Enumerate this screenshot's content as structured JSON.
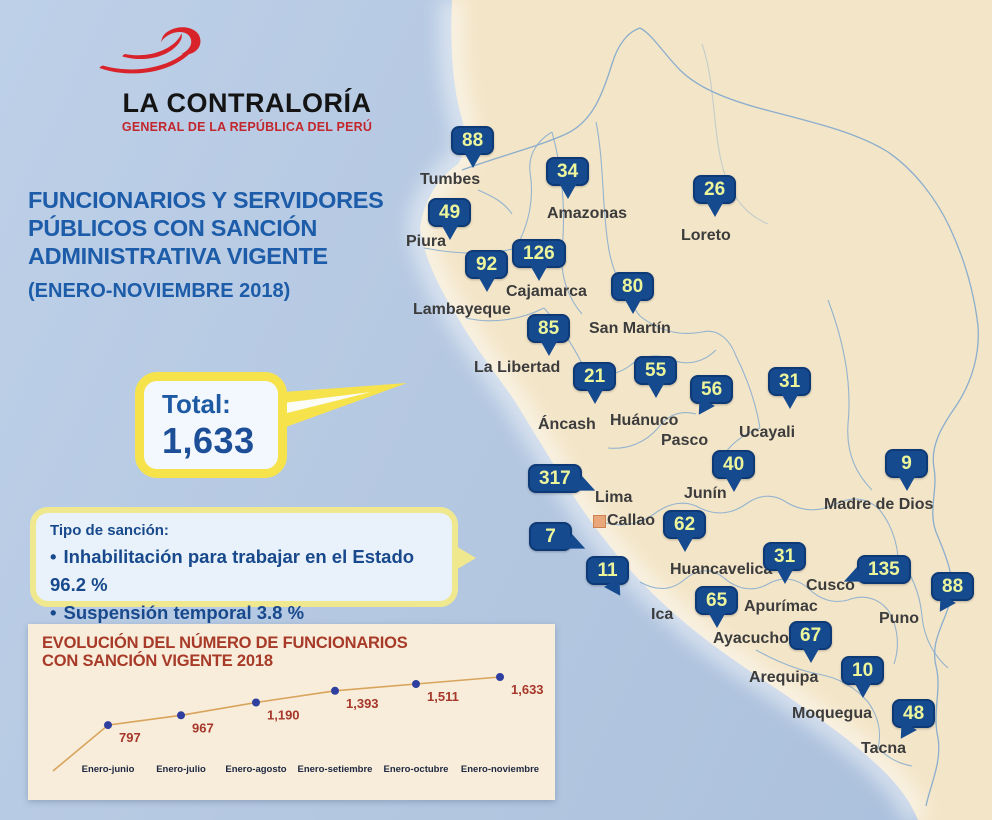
{
  "logo": {
    "title": "LA CONTRALORÍA",
    "subtitle": "GENERAL DE LA REPÚBLICA DEL PERÚ"
  },
  "header": {
    "title_lines": [
      "FUNCIONARIOS Y SERVIDORES",
      "PÚBLICOS CON SANCIÓN",
      "ADMINISTRATIVA VIGENTE"
    ],
    "period": "(ENERO-NOVIEMBRE 2018)"
  },
  "total": {
    "label": "Total:",
    "value": "1,633"
  },
  "sanction_box": {
    "title": "Tipo de sanción:",
    "items": [
      "Inhabilitación para trabajar en el Estado 96.2 %",
      "Suspensión temporal 3.8 %"
    ]
  },
  "map": {
    "regions": [
      {
        "name": "Tumbes",
        "value": 88
      },
      {
        "name": "Amazonas",
        "value": 34
      },
      {
        "name": "Loreto",
        "value": 26
      },
      {
        "name": "Piura",
        "value": 49
      },
      {
        "name": "Cajamarca",
        "value": 126
      },
      {
        "name": "Lambayeque",
        "value": 92
      },
      {
        "name": "San Martín",
        "value": 80
      },
      {
        "name": "La Libertad",
        "value": 85
      },
      {
        "name": "Áncash",
        "value": 21
      },
      {
        "name": "Huánuco",
        "value": 55
      },
      {
        "name": "Pasco",
        "value": 56
      },
      {
        "name": "Ucayali",
        "value": 31
      },
      {
        "name": "Junín",
        "value": 40
      },
      {
        "name": "Lima",
        "value": 317
      },
      {
        "name": "Callao",
        "value": 7
      },
      {
        "name": "Madre de Dios",
        "value": 9
      },
      {
        "name": "Huancavelica",
        "value": 62
      },
      {
        "name": "Apurímac",
        "value": 31
      },
      {
        "name": "Cusco",
        "value": 135
      },
      {
        "name": "Puno",
        "value": 88
      },
      {
        "name": "Ica",
        "value": 11
      },
      {
        "name": "Ayacucho",
        "value": 65
      },
      {
        "name": "Arequipa",
        "value": 67
      },
      {
        "name": "Moquegua",
        "value": 10
      },
      {
        "name": "Tacna",
        "value": 48
      }
    ]
  },
  "chart_data": {
    "type": "line",
    "title": "EVOLUCIÓN DEL NÚMERO DE FUNCIONARIOS CON SANCIÓN VIGENTE 2018",
    "title_lines": [
      "EVOLUCIÓN DEL NÚMERO DE FUNCIONARIOS",
      "CON SANCIÓN VIGENTE 2018"
    ],
    "categories": [
      "Enero-junio",
      "Enero-julio",
      "Enero-agosto",
      "Enero-setiembre",
      "Enero-octubre",
      "Enero-noviembre"
    ],
    "values": [
      797,
      967,
      1190,
      1393,
      1511,
      1633
    ],
    "value_labels": [
      "797",
      "967",
      "1,190",
      "1,393",
      "1,511",
      "1,633"
    ],
    "ylim": [
      0,
      1633
    ],
    "grid": false,
    "line_color": "#d8a45c",
    "point_color": "#2e3f9f",
    "value_label_color": "#a6372a",
    "category_label_color": "#1c2740"
  },
  "colors": {
    "ocean": "#b6c9e2",
    "land": "#f3e5c8",
    "map_border": "#7fa7cd",
    "badge_blue": "#164a8f",
    "badge_text": "#edf59b",
    "title_blue": "#1d5ca9",
    "callout_yellow": "#f6e34b",
    "chart_panel": "#f8edda",
    "chart_title_red": "#a73a28",
    "logo_red": "#d8232a",
    "capital_marker": "#e8a87c"
  }
}
